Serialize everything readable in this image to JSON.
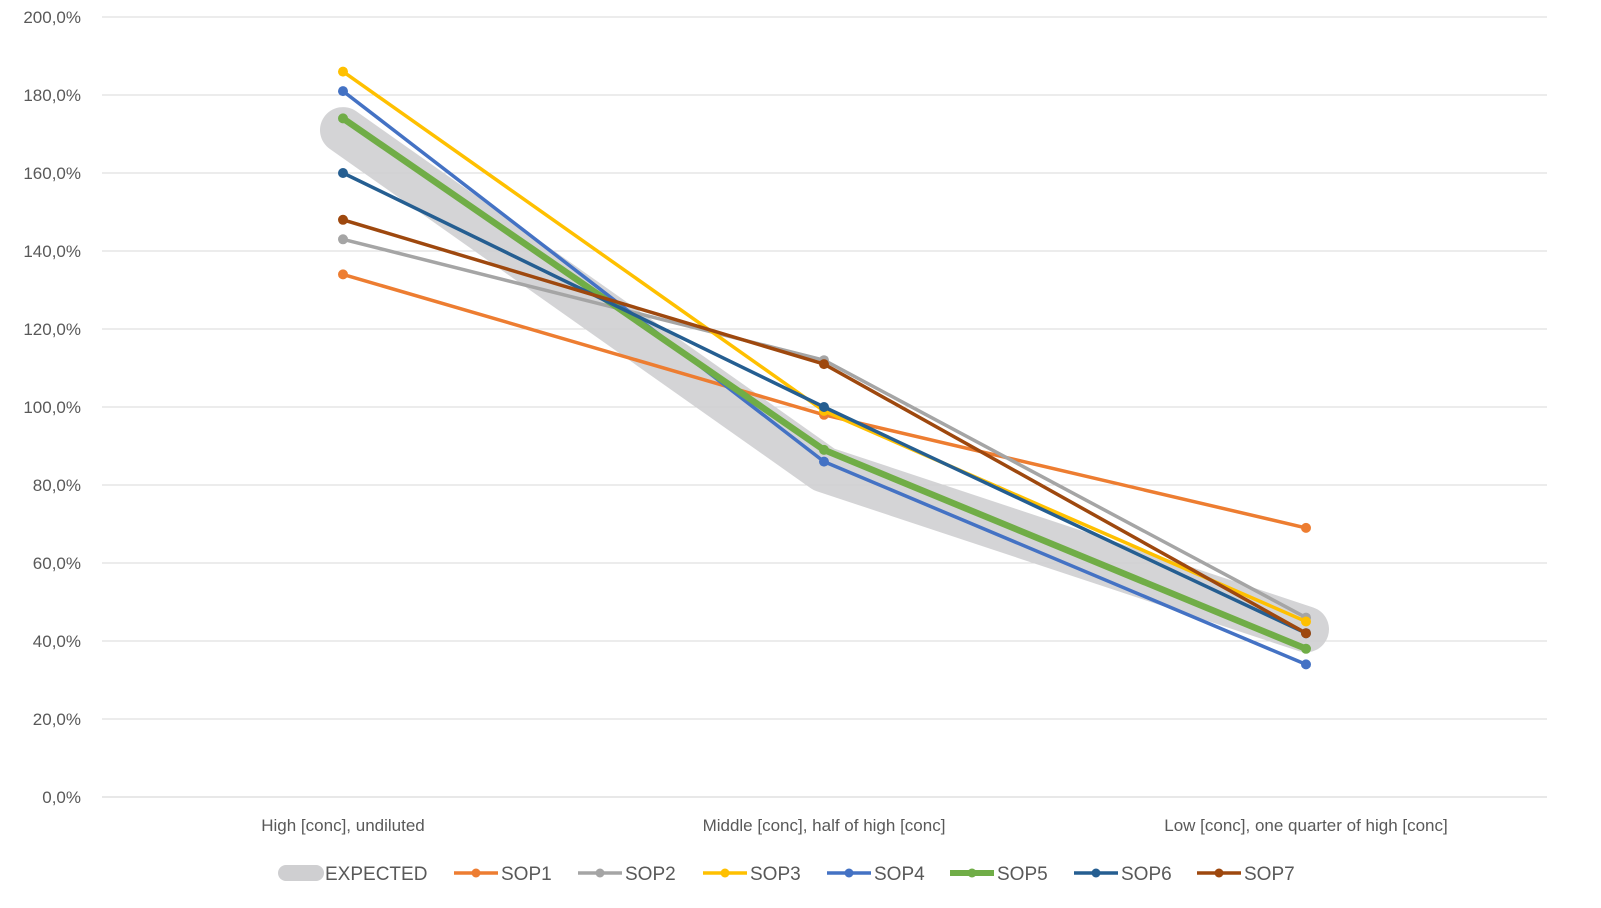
{
  "chart_data": {
    "type": "line",
    "categories": [
      "High [conc], undiluted",
      "Middle [conc], half of high [conc]",
      "Low [conc], one quarter of high [conc]"
    ],
    "y_ticks": [
      "0,0%",
      "20,0%",
      "40,0%",
      "60,0%",
      "80,0%",
      "100,0%",
      "120,0%",
      "140,0%",
      "160,0%",
      "180,0%",
      "200,0%"
    ],
    "ylim": [
      0,
      200
    ],
    "grid": true,
    "legend_position": "bottom",
    "series": [
      {
        "name": "EXPECTED",
        "values": [
          171,
          84,
          43
        ],
        "color": "#cfcfd1",
        "style": "band"
      },
      {
        "name": "SOP1",
        "values": [
          134,
          98,
          69
        ],
        "color": "#ed7d31"
      },
      {
        "name": "SOP2",
        "values": [
          143,
          112,
          46
        ],
        "color": "#a5a5a5"
      },
      {
        "name": "SOP3",
        "values": [
          186,
          99,
          45
        ],
        "color": "#ffc000"
      },
      {
        "name": "SOP4",
        "values": [
          181,
          86,
          34
        ],
        "color": "#4472c4"
      },
      {
        "name": "SOP5",
        "values": [
          174,
          89,
          38
        ],
        "color": "#70ad47",
        "style": "thick"
      },
      {
        "name": "SOP6",
        "values": [
          160,
          100,
          42
        ],
        "color": "#255e91"
      },
      {
        "name": "SOP7",
        "values": [
          148,
          111,
          42
        ],
        "color": "#9e480e"
      }
    ]
  }
}
